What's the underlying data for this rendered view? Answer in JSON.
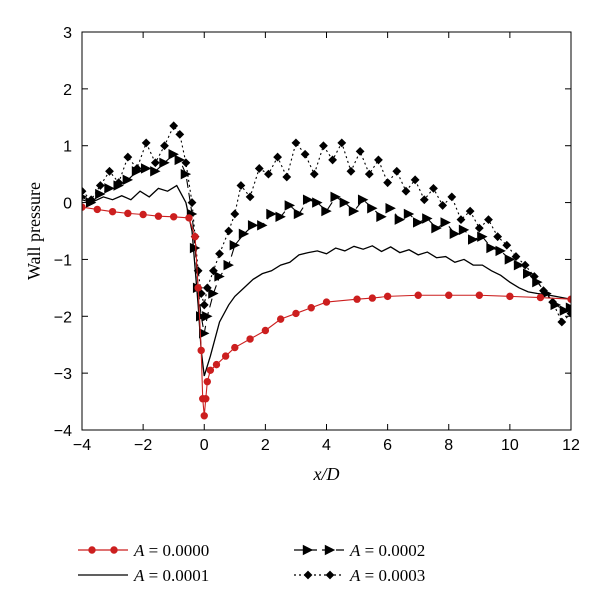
{
  "chart_data": {
    "type": "line",
    "xlabel": "x/D",
    "ylabel": "Wall pressure",
    "xlim": [
      -4,
      12
    ],
    "ylim": [
      -4,
      3
    ],
    "xticks": [
      -4,
      -2,
      0,
      2,
      4,
      6,
      8,
      10,
      12
    ],
    "yticks": [
      -4,
      -3,
      -2,
      -1,
      0,
      1,
      2,
      3
    ],
    "grid": false,
    "legend_position": "bottom",
    "series": [
      {
        "name": "A = 0.0000",
        "legend_var": "A",
        "legend_value": "= 0.0000",
        "color": "#cc1f1f",
        "style": "solid",
        "marker": "circle",
        "x": [
          -4,
          -3.5,
          -3,
          -2.5,
          -2,
          -1.5,
          -1,
          -0.5,
          -0.3,
          -0.2,
          -0.1,
          -0.05,
          0,
          0.05,
          0.1,
          0.2,
          0.4,
          0.7,
          1,
          1.5,
          2,
          2.5,
          3,
          3.5,
          4,
          5,
          5.5,
          6,
          7,
          8,
          9,
          10,
          11,
          12
        ],
        "y": [
          -0.08,
          -0.12,
          -0.16,
          -0.19,
          -0.21,
          -0.24,
          -0.25,
          -0.27,
          -0.6,
          -1.5,
          -2.6,
          -3.45,
          -3.75,
          -3.45,
          -3.15,
          -2.95,
          -2.85,
          -2.7,
          -2.55,
          -2.4,
          -2.25,
          -2.05,
          -1.95,
          -1.85,
          -1.75,
          -1.7,
          -1.68,
          -1.65,
          -1.63,
          -1.63,
          -1.63,
          -1.65,
          -1.67,
          -1.7
        ]
      },
      {
        "name": "A = 0.0001",
        "legend_var": "A",
        "legend_value": "= 0.0001",
        "color": "#000000",
        "style": "solid",
        "marker": "none",
        "x": [
          -4,
          -3.7,
          -3.3,
          -3.0,
          -2.7,
          -2.4,
          -2.1,
          -1.8,
          -1.5,
          -1.2,
          -0.9,
          -0.6,
          -0.4,
          -0.2,
          -0.1,
          0,
          0.2,
          0.5,
          0.8,
          1.0,
          1.3,
          1.6,
          1.9,
          2.2,
          2.5,
          2.8,
          3.1,
          3.4,
          3.7,
          4.0,
          4.3,
          4.6,
          4.9,
          5.2,
          5.5,
          5.8,
          6.1,
          6.4,
          6.7,
          7.0,
          7.3,
          7.6,
          7.9,
          8.2,
          8.5,
          8.8,
          9.1,
          9.4,
          9.7,
          10.0,
          10.3,
          10.6,
          10.9,
          11.2,
          11.5,
          12
        ],
        "y": [
          0.05,
          0.0,
          0.1,
          0.05,
          0.12,
          0.05,
          0.2,
          0.1,
          0.25,
          0.2,
          0.3,
          0.0,
          -0.5,
          -1.8,
          -2.6,
          -3.05,
          -2.7,
          -2.1,
          -1.8,
          -1.65,
          -1.5,
          -1.35,
          -1.25,
          -1.2,
          -1.1,
          -1.05,
          -0.92,
          -0.88,
          -0.85,
          -0.9,
          -0.8,
          -0.85,
          -0.77,
          -0.82,
          -0.76,
          -0.86,
          -0.78,
          -0.88,
          -0.83,
          -0.92,
          -0.87,
          -0.97,
          -0.95,
          -1.05,
          -1.0,
          -1.1,
          -1.1,
          -1.2,
          -1.28,
          -1.4,
          -1.5,
          -1.57,
          -1.6,
          -1.62,
          -1.65,
          -1.7
        ]
      },
      {
        "name": "A = 0.0002",
        "legend_var": "A",
        "legend_value": "= 0.0002",
        "color": "#000000",
        "style": "dashed",
        "marker": "triangle-right",
        "x": [
          -4,
          -3.7,
          -3.4,
          -3.1,
          -2.8,
          -2.5,
          -2.2,
          -1.9,
          -1.6,
          -1.3,
          -1.0,
          -0.8,
          -0.6,
          -0.4,
          -0.3,
          -0.2,
          -0.1,
          0,
          0.1,
          0.3,
          0.5,
          0.8,
          1.0,
          1.3,
          1.6,
          1.9,
          2.2,
          2.5,
          2.8,
          3.1,
          3.4,
          3.7,
          4.0,
          4.3,
          4.6,
          4.9,
          5.2,
          5.5,
          5.8,
          6.1,
          6.4,
          6.7,
          7.0,
          7.3,
          7.6,
          7.9,
          8.2,
          8.5,
          8.8,
          9.1,
          9.4,
          9.7,
          10.0,
          10.3,
          10.6,
          10.9,
          11.2,
          11.5,
          11.8,
          12
        ],
        "y": [
          0.1,
          0.0,
          0.15,
          0.25,
          0.3,
          0.4,
          0.55,
          0.6,
          0.55,
          0.7,
          0.85,
          0.75,
          0.5,
          -0.2,
          -0.8,
          -1.5,
          -2.0,
          -2.3,
          -2.0,
          -1.6,
          -1.3,
          -1.1,
          -0.75,
          -0.55,
          -0.4,
          -0.4,
          -0.2,
          -0.25,
          -0.05,
          -0.2,
          0.05,
          0.0,
          -0.15,
          0.1,
          0.0,
          -0.15,
          0.05,
          -0.1,
          -0.25,
          -0.1,
          -0.3,
          -0.2,
          -0.35,
          -0.28,
          -0.45,
          -0.35,
          -0.55,
          -0.48,
          -0.65,
          -0.6,
          -0.8,
          -0.85,
          -1.0,
          -1.1,
          -1.25,
          -1.4,
          -1.6,
          -1.8,
          -1.9,
          -1.85
        ]
      },
      {
        "name": "A = 0.0003",
        "legend_var": "A",
        "legend_value": "= 0.0003",
        "color": "#000000",
        "style": "dotted",
        "marker": "diamond",
        "x": [
          -4,
          -3.7,
          -3.4,
          -3.1,
          -2.8,
          -2.5,
          -2.2,
          -1.9,
          -1.6,
          -1.3,
          -1.0,
          -0.8,
          -0.6,
          -0.4,
          -0.3,
          -0.2,
          -0.1,
          0,
          0.1,
          0.3,
          0.5,
          0.8,
          1.0,
          1.2,
          1.5,
          1.8,
          2.1,
          2.4,
          2.7,
          3.0,
          3.3,
          3.6,
          3.9,
          4.2,
          4.5,
          4.8,
          5.1,
          5.4,
          5.7,
          6.0,
          6.3,
          6.6,
          6.9,
          7.2,
          7.5,
          7.8,
          8.1,
          8.4,
          8.7,
          9.0,
          9.3,
          9.6,
          9.9,
          10.2,
          10.5,
          10.8,
          11.1,
          11.4,
          11.7,
          12
        ],
        "y": [
          0.2,
          0.05,
          0.3,
          0.55,
          0.35,
          0.8,
          0.6,
          1.05,
          0.7,
          1.0,
          1.35,
          1.2,
          0.7,
          0.0,
          -0.6,
          -1.2,
          -1.6,
          -1.8,
          -1.5,
          -1.2,
          -0.9,
          -0.5,
          -0.2,
          0.3,
          0.1,
          0.6,
          0.5,
          0.8,
          0.45,
          1.05,
          0.85,
          0.5,
          1.0,
          0.75,
          1.05,
          0.55,
          0.9,
          0.5,
          0.75,
          0.35,
          0.55,
          0.2,
          0.4,
          0.05,
          0.25,
          -0.05,
          0.1,
          -0.3,
          -0.15,
          -0.45,
          -0.3,
          -0.6,
          -0.75,
          -0.95,
          -1.1,
          -1.3,
          -1.55,
          -1.75,
          -2.1,
          -1.95
        ]
      }
    ]
  }
}
